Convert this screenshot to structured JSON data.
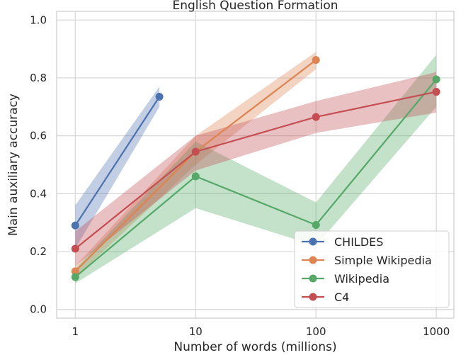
{
  "chart_data": {
    "type": "line",
    "title": "English Question Formation",
    "xlabel": "Number of words (millions)",
    "ylabel": "Main auxiliary accuracy",
    "xscale": "log",
    "xlim": [
      0.7,
      1400
    ],
    "ylim": [
      -0.03,
      1.03
    ],
    "xticks": [
      1,
      10,
      100,
      1000
    ],
    "xtick_labels": [
      "1",
      "10",
      "100",
      "1000"
    ],
    "yticks": [
      0.0,
      0.2,
      0.4,
      0.6,
      0.8,
      1.0
    ],
    "ytick_labels": [
      "0.0",
      "0.2",
      "0.4",
      "0.6",
      "0.8",
      "1.0"
    ],
    "grid": true,
    "legend_position": "bottom-right",
    "series": [
      {
        "name": "CHILDES",
        "color": "#4c72b0",
        "x": [
          1,
          5
        ],
        "y": [
          0.29,
          0.735
        ],
        "lower": [
          0.21,
          0.7
        ],
        "upper": [
          0.36,
          0.77
        ]
      },
      {
        "name": "Simple Wikipedia",
        "color": "#dd8452",
        "x": [
          1,
          10,
          100
        ],
        "y": [
          0.132,
          0.545,
          0.862
        ],
        "lower": [
          0.11,
          0.5,
          0.83
        ],
        "upper": [
          0.15,
          0.6,
          0.89
        ]
      },
      {
        "name": "Wikipedia",
        "color": "#55a868",
        "x": [
          1,
          10,
          100,
          1000
        ],
        "y": [
          0.112,
          0.46,
          0.292,
          0.795
        ],
        "lower": [
          0.09,
          0.35,
          0.22,
          0.7
        ],
        "upper": [
          0.14,
          0.58,
          0.37,
          0.88
        ]
      },
      {
        "name": "C4",
        "color": "#c44e52",
        "x": [
          1,
          10,
          100,
          1000
        ],
        "y": [
          0.21,
          0.545,
          0.665,
          0.752
        ],
        "lower": [
          0.15,
          0.48,
          0.61,
          0.68
        ],
        "upper": [
          0.27,
          0.6,
          0.72,
          0.82
        ]
      }
    ]
  }
}
